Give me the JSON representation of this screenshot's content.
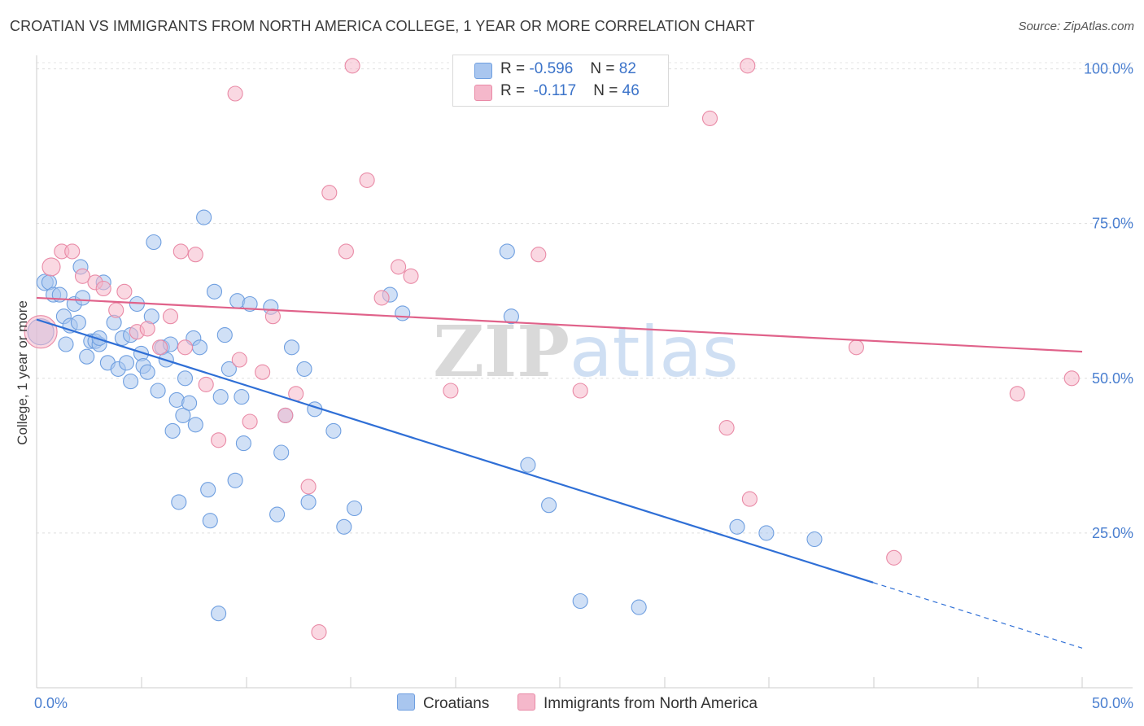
{
  "title": "CROATIAN VS IMMIGRANTS FROM NORTH AMERICA COLLEGE, 1 YEAR OR MORE CORRELATION CHART",
  "source": "Source: ZipAtlas.com",
  "legend": {
    "rows": [
      {
        "r_label": "R =",
        "r_value": "-0.596",
        "n_label": "N =",
        "n_value": "82",
        "color": "#a9c6ef"
      },
      {
        "r_label": "R =",
        "r_value": "-0.117",
        "n_label": "N =",
        "n_value": "46",
        "color": "#f5b8cb"
      }
    ]
  },
  "bottom_legend": [
    {
      "label": "Croatians",
      "color": "#a9c6ef"
    },
    {
      "label": "Immigrants from North America",
      "color": "#f5b8cb"
    }
  ],
  "chart_data": {
    "type": "scatter",
    "ylabel": "College, 1 year or more",
    "xlim": [
      0,
      50
    ],
    "ylim": [
      0,
      103
    ],
    "x_tick_labels": [
      {
        "value": 0,
        "label": "0.0%"
      },
      {
        "value": 50,
        "label": "50.0%"
      }
    ],
    "y_tick_labels": [
      {
        "value": 25,
        "label": "25.0%"
      },
      {
        "value": 50,
        "label": "50.0%"
      },
      {
        "value": 75,
        "label": "75.0%"
      },
      {
        "value": 100,
        "label": "100.0%"
      }
    ],
    "grid": "horizontal dashed",
    "watermark": "ZIPatlas",
    "series": [
      {
        "name": "Croatians",
        "color": "#6f9fe0",
        "fill": "#a9c6ef",
        "trend": {
          "x0": 0,
          "y0": 59.5,
          "x1": 40,
          "y1": 17.0,
          "dash_to_x": 50,
          "dash_to_y": 6.4,
          "color": "#2f6fd6"
        },
        "points": [
          [
            0.2,
            57.5,
            16
          ],
          [
            0.4,
            65.5,
            10
          ],
          [
            0.6,
            65.5,
            9
          ],
          [
            0.8,
            63.5,
            9
          ],
          [
            1.1,
            63.5,
            9
          ],
          [
            1.3,
            60.0,
            9
          ],
          [
            1.4,
            55.5,
            9
          ],
          [
            1.6,
            58.5,
            9
          ],
          [
            1.8,
            62.0,
            9
          ],
          [
            2.0,
            59.0,
            9
          ],
          [
            2.1,
            68.0,
            9
          ],
          [
            2.2,
            63.0,
            9
          ],
          [
            2.4,
            53.5,
            9
          ],
          [
            2.6,
            56.0,
            9
          ],
          [
            2.8,
            56.0,
            9
          ],
          [
            3.0,
            55.5,
            9
          ],
          [
            3.0,
            56.5,
            9
          ],
          [
            3.2,
            65.5,
            9
          ],
          [
            3.4,
            52.5,
            9
          ],
          [
            3.7,
            59.0,
            9
          ],
          [
            3.9,
            51.5,
            9
          ],
          [
            4.1,
            56.5,
            9
          ],
          [
            4.3,
            52.5,
            9
          ],
          [
            4.5,
            57.0,
            9
          ],
          [
            4.5,
            49.5,
            9
          ],
          [
            4.8,
            62.0,
            9
          ],
          [
            5.0,
            54.0,
            9
          ],
          [
            5.1,
            52.0,
            9
          ],
          [
            5.3,
            51.0,
            9
          ],
          [
            5.5,
            60.0,
            9
          ],
          [
            5.6,
            72.0,
            9
          ],
          [
            5.8,
            48.0,
            9
          ],
          [
            6.0,
            55.0,
            9
          ],
          [
            6.2,
            53.0,
            9
          ],
          [
            6.4,
            55.5,
            9
          ],
          [
            6.5,
            41.5,
            9
          ],
          [
            6.7,
            46.5,
            9
          ],
          [
            6.8,
            30.0,
            9
          ],
          [
            7.0,
            44.0,
            9
          ],
          [
            7.1,
            50.0,
            9
          ],
          [
            7.3,
            46.0,
            9
          ],
          [
            7.5,
            56.5,
            9
          ],
          [
            7.6,
            42.5,
            9
          ],
          [
            7.8,
            55.0,
            9
          ],
          [
            8.0,
            76.0,
            9
          ],
          [
            8.2,
            32.0,
            9
          ],
          [
            8.3,
            27.0,
            9
          ],
          [
            8.5,
            64.0,
            9
          ],
          [
            8.7,
            12.0,
            9
          ],
          [
            8.8,
            47.0,
            9
          ],
          [
            9.0,
            57.0,
            9
          ],
          [
            9.2,
            51.5,
            9
          ],
          [
            9.5,
            33.5,
            9
          ],
          [
            9.6,
            62.5,
            9
          ],
          [
            9.8,
            47.0,
            9
          ],
          [
            9.9,
            39.5,
            9
          ],
          [
            10.2,
            62.0,
            9
          ],
          [
            11.2,
            61.5,
            9
          ],
          [
            11.5,
            28.0,
            9
          ],
          [
            11.7,
            38.0,
            9
          ],
          [
            11.9,
            44.0,
            9
          ],
          [
            12.2,
            55.0,
            9
          ],
          [
            12.8,
            51.5,
            9
          ],
          [
            13.0,
            30.0,
            9
          ],
          [
            13.3,
            45.0,
            9
          ],
          [
            14.2,
            41.5,
            9
          ],
          [
            14.7,
            26.0,
            9
          ],
          [
            15.2,
            29.0,
            9
          ],
          [
            16.9,
            63.5,
            9
          ],
          [
            17.5,
            60.5,
            9
          ],
          [
            22.5,
            70.5,
            9
          ],
          [
            22.7,
            60.0,
            9
          ],
          [
            23.5,
            36.0,
            9
          ],
          [
            24.5,
            29.5,
            9
          ],
          [
            26.0,
            14.0,
            9
          ],
          [
            28.8,
            13.0,
            9
          ],
          [
            33.5,
            26.0,
            9
          ],
          [
            34.9,
            25.0,
            9
          ],
          [
            37.2,
            24.0,
            9
          ]
        ]
      },
      {
        "name": "Immigrants from North America",
        "color": "#e98aa6",
        "fill": "#f5b8cb",
        "trend": {
          "x0": 0,
          "y0": 63.0,
          "x1": 50,
          "y1": 54.3,
          "color": "#e0628a"
        },
        "points": [
          [
            0.2,
            57.5,
            20
          ],
          [
            0.7,
            68.0,
            11
          ],
          [
            1.2,
            70.5,
            9
          ],
          [
            1.7,
            70.5,
            9
          ],
          [
            2.2,
            66.5,
            9
          ],
          [
            2.8,
            65.5,
            9
          ],
          [
            3.2,
            64.5,
            9
          ],
          [
            3.8,
            61.0,
            9
          ],
          [
            4.2,
            64.0,
            9
          ],
          [
            4.8,
            57.5,
            9
          ],
          [
            5.3,
            58.0,
            9
          ],
          [
            5.9,
            55.0,
            9
          ],
          [
            6.4,
            60.0,
            9
          ],
          [
            6.9,
            70.5,
            9
          ],
          [
            7.1,
            55.0,
            9
          ],
          [
            7.6,
            70.0,
            9
          ],
          [
            8.1,
            49.0,
            9
          ],
          [
            8.7,
            40.0,
            9
          ],
          [
            9.5,
            96.0,
            9
          ],
          [
            9.7,
            53.0,
            9
          ],
          [
            10.2,
            43.0,
            9
          ],
          [
            10.8,
            51.0,
            9
          ],
          [
            11.3,
            60.0,
            9
          ],
          [
            11.9,
            44.0,
            9
          ],
          [
            12.4,
            47.5,
            9
          ],
          [
            13.0,
            32.5,
            9
          ],
          [
            13.5,
            9.0,
            9
          ],
          [
            14.0,
            80.0,
            9
          ],
          [
            14.8,
            70.5,
            9
          ],
          [
            15.1,
            100.5,
            9
          ],
          [
            15.8,
            82.0,
            9
          ],
          [
            16.5,
            63.0,
            9
          ],
          [
            17.3,
            68.0,
            9
          ],
          [
            17.9,
            66.5,
            9
          ],
          [
            19.8,
            48.0,
            9
          ],
          [
            24.0,
            70.0,
            9
          ],
          [
            26.0,
            48.0,
            9
          ],
          [
            32.2,
            92.0,
            9
          ],
          [
            33.0,
            42.0,
            9
          ],
          [
            34.0,
            100.5,
            9
          ],
          [
            34.1,
            30.5,
            9
          ],
          [
            39.2,
            55.0,
            9
          ],
          [
            41.0,
            21.0,
            9
          ],
          [
            46.9,
            47.5,
            9
          ],
          [
            49.5,
            50.0,
            9
          ]
        ]
      }
    ]
  }
}
